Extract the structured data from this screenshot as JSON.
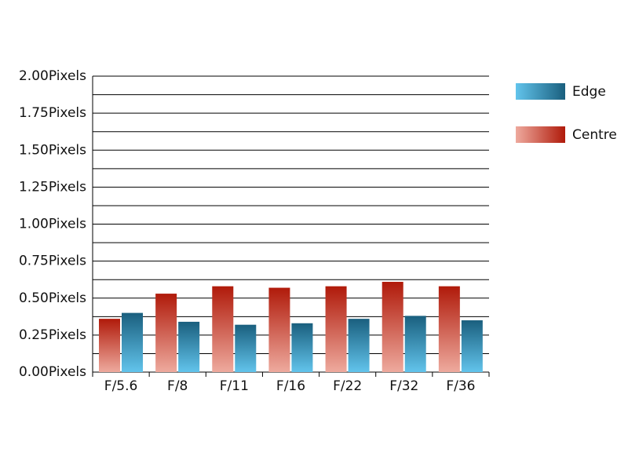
{
  "chart_data": {
    "type": "bar",
    "categories": [
      "F/5.6",
      "F/8",
      "F/11",
      "F/16",
      "F/22",
      "F/32",
      "F/36"
    ],
    "series": [
      {
        "name": "Edge",
        "colors": [
          "#62c4ec",
          "#1a5f7e"
        ],
        "values": [
          0.4,
          0.34,
          0.32,
          0.33,
          0.36,
          0.38,
          0.35
        ]
      },
      {
        "name": "Centre",
        "colors": [
          "#eeaa9e",
          "#b01a0a"
        ],
        "values": [
          0.36,
          0.53,
          0.58,
          0.57,
          0.58,
          0.61,
          0.58
        ]
      }
    ],
    "ylim": [
      0,
      2
    ],
    "yticks": [
      {
        "value": 0,
        "label": "0.00Pixels"
      },
      {
        "value": 0.25,
        "label": "0.25Pixels"
      },
      {
        "value": 0.5,
        "label": "0.50Pixels"
      },
      {
        "value": 0.75,
        "label": "0.75Pixels"
      },
      {
        "value": 1,
        "label": "1.00Pixels"
      },
      {
        "value": 1.25,
        "label": "1.25Pixels"
      },
      {
        "value": 1.5,
        "label": "1.50Pixels"
      },
      {
        "value": 1.75,
        "label": "1.75Pixels"
      },
      {
        "value": 2,
        "label": "2.00Pixels"
      }
    ],
    "minor_yticks": [
      0.125,
      0.375,
      0.625,
      0.875,
      1.125,
      1.375,
      1.625,
      1.875
    ],
    "grid": true,
    "legend": "right"
  }
}
